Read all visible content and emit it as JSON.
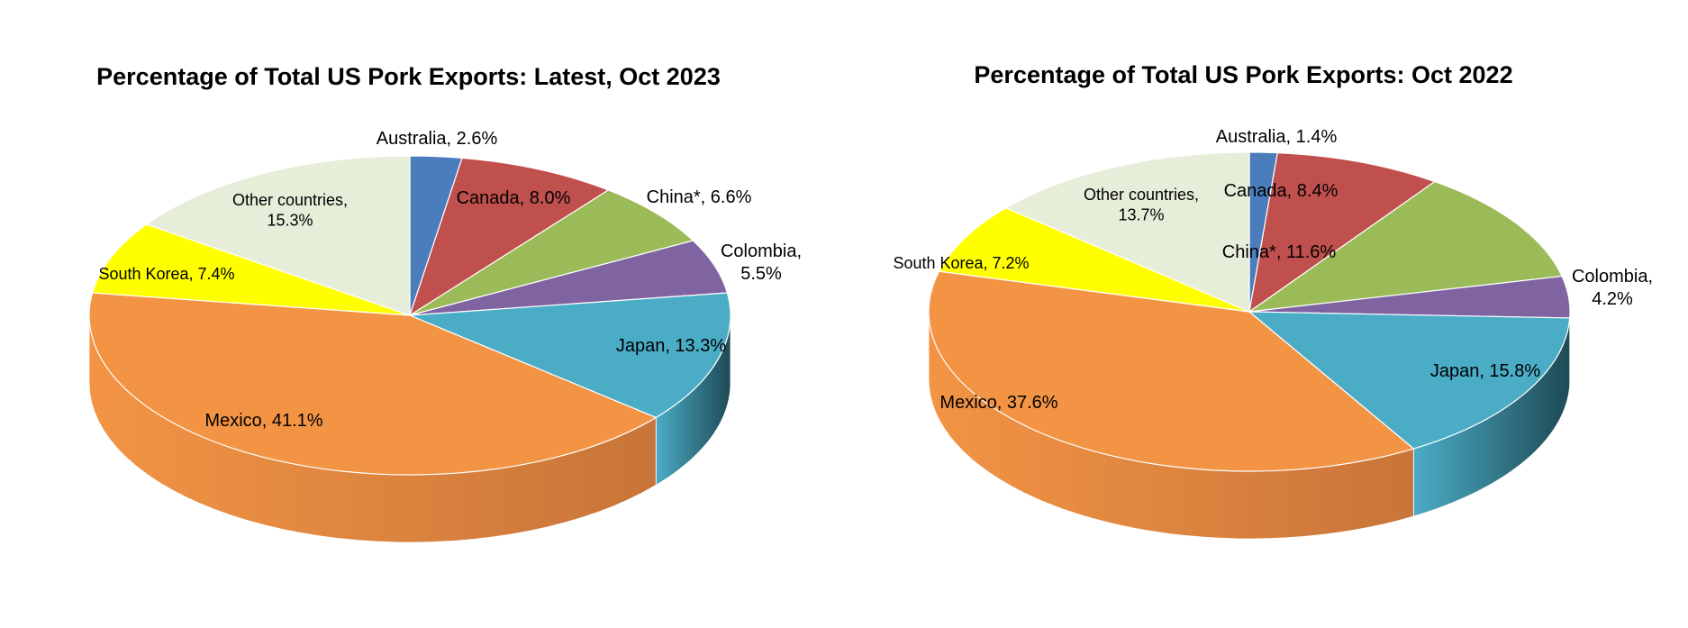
{
  "chart_data": [
    {
      "type": "pie",
      "title": "Percentage of Total US Pork Exports: Latest, Oct 2023",
      "categories": [
        "Australia",
        "Canada",
        "China*",
        "Colombia",
        "Japan",
        "Mexico",
        "South Korea",
        "Other countries"
      ],
      "values": [
        2.6,
        8.0,
        6.6,
        5.5,
        13.3,
        41.1,
        7.4,
        15.3
      ],
      "labels": [
        "Australia, 2.6%",
        "Canada, 8.0%",
        "China*, 6.6%",
        "Colombia,|5.5%",
        "Japan, 13.3%",
        "Mexico, 41.1%",
        "South Korea, 7.4%",
        "Other countries,|15.3%"
      ],
      "colors": [
        "#4b7cbb",
        "#c0504d",
        "#9bbb59",
        "#8064a2",
        "#4bacc6",
        "#f39444",
        "#ffff00",
        "#e6edd9"
      ],
      "side_colors": [
        "#2a4a75",
        "#7a2e2c",
        "#5b7330",
        "#4b3a62",
        "#1e4a55",
        "#c8753a",
        "#9a9a00",
        "#9aa08c"
      ]
    },
    {
      "type": "pie",
      "title": "Percentage of Total US Pork Exports: Oct 2022",
      "categories": [
        "Australia",
        "Canada",
        "China*",
        "Colombia",
        "Japan",
        "Mexico",
        "South Korea",
        "Other countries"
      ],
      "values": [
        1.4,
        8.4,
        11.6,
        4.2,
        15.8,
        37.6,
        7.2,
        13.7
      ],
      "labels": [
        "Australia, 1.4%",
        "Canada, 8.4%",
        "China*, 11.6%",
        "Colombia,|4.2%",
        "Japan, 15.8%",
        "Mexico, 37.6%",
        "South Korea, 7.2%",
        "Other countries,|13.7%"
      ],
      "colors": [
        "#4b7cbb",
        "#c0504d",
        "#9bbb59",
        "#8064a2",
        "#4bacc6",
        "#f39444",
        "#ffff00",
        "#e6edd9"
      ],
      "side_colors": [
        "#2a4a75",
        "#7a2e2c",
        "#5b7330",
        "#4b3a62",
        "#1e4a55",
        "#c8753a",
        "#9a9a00",
        "#9aa08c"
      ]
    }
  ]
}
